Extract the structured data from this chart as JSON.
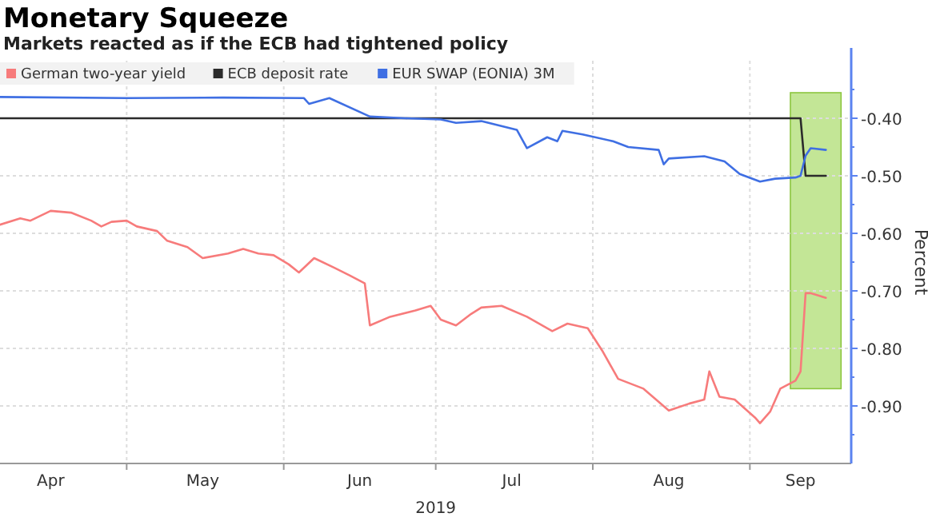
{
  "chart_data": {
    "type": "line",
    "title": "Monetary Squeeze",
    "subtitle": "Markets reacted as if the ECB had tightened policy",
    "xlabel": "2019",
    "ylabel": "Percent",
    "xlim": [
      "2019-04-06",
      "2019-09-21"
    ],
    "xticks": [
      {
        "value": "2019-04-16",
        "label": "Apr"
      },
      {
        "value": "2019-05-01",
        "label": null
      },
      {
        "value": "2019-05-16",
        "label": "May"
      },
      {
        "value": "2019-06-01",
        "label": null
      },
      {
        "value": "2019-06-16",
        "label": "Jun"
      },
      {
        "value": "2019-07-01",
        "label": null
      },
      {
        "value": "2019-07-16",
        "label": "Jul"
      },
      {
        "value": "2019-08-01",
        "label": null
      },
      {
        "value": "2019-08-16",
        "label": "Aug"
      },
      {
        "value": "2019-09-01",
        "label": null
      },
      {
        "value": "2019-09-11",
        "label": "Sep"
      }
    ],
    "ylim": [
      -1.0,
      -0.3
    ],
    "yticks": [
      {
        "value": -0.35,
        "label": null
      },
      {
        "value": -0.4,
        "label": "-0.40"
      },
      {
        "value": -0.45,
        "label": null
      },
      {
        "value": -0.5,
        "label": "-0.50"
      },
      {
        "value": -0.55,
        "label": null
      },
      {
        "value": -0.6,
        "label": "-0.60"
      },
      {
        "value": -0.65,
        "label": null
      },
      {
        "value": -0.7,
        "label": "-0.70"
      },
      {
        "value": -0.75,
        "label": null
      },
      {
        "value": -0.8,
        "label": "-0.80"
      },
      {
        "value": -0.85,
        "label": null
      },
      {
        "value": -0.9,
        "label": "-0.90"
      },
      {
        "value": -0.95,
        "label": null
      }
    ],
    "grid": true,
    "legend": "top left",
    "bands": [
      {
        "axis": "x",
        "from": "2019-09-09",
        "to": "2019-09-19",
        "color": "#a9dc6a"
      }
    ],
    "series": [
      {
        "name": "German two-year yield",
        "color": "#f77b7b",
        "x": [
          "2019-04-06",
          "2019-04-10",
          "2019-04-12",
          "2019-04-16",
          "2019-04-20",
          "2019-04-24",
          "2019-04-26",
          "2019-04-28",
          "2019-05-01",
          "2019-05-03",
          "2019-05-07",
          "2019-05-09",
          "2019-05-13",
          "2019-05-16",
          "2019-05-21",
          "2019-05-24",
          "2019-05-27",
          "2019-05-30",
          "2019-06-02",
          "2019-06-04",
          "2019-06-07",
          "2019-06-11",
          "2019-06-14",
          "2019-06-17",
          "2019-06-18",
          "2019-06-22",
          "2019-06-27",
          "2019-06-30",
          "2019-07-02",
          "2019-07-05",
          "2019-07-08",
          "2019-07-10",
          "2019-07-14",
          "2019-07-19",
          "2019-07-24",
          "2019-07-27",
          "2019-07-31",
          "2019-08-03",
          "2019-08-06",
          "2019-08-11",
          "2019-08-16",
          "2019-08-20",
          "2019-08-23",
          "2019-08-24",
          "2019-08-26",
          "2019-08-29",
          "2019-09-02",
          "2019-09-03",
          "2019-09-05",
          "2019-09-07",
          "2019-09-10",
          "2019-09-11",
          "2019-09-12",
          "2019-09-13",
          "2019-09-16"
        ],
        "values": [
          -0.585,
          -0.574,
          -0.578,
          -0.561,
          -0.564,
          -0.578,
          -0.588,
          -0.58,
          -0.578,
          -0.588,
          -0.596,
          -0.613,
          -0.624,
          -0.643,
          -0.635,
          -0.627,
          -0.635,
          -0.638,
          -0.654,
          -0.668,
          -0.643,
          -0.66,
          -0.673,
          -0.687,
          -0.76,
          -0.745,
          -0.734,
          -0.726,
          -0.75,
          -0.76,
          -0.74,
          -0.729,
          -0.726,
          -0.745,
          -0.77,
          -0.757,
          -0.765,
          -0.806,
          -0.853,
          -0.87,
          -0.908,
          -0.896,
          -0.889,
          -0.84,
          -0.884,
          -0.889,
          -0.92,
          -0.93,
          -0.91,
          -0.87,
          -0.856,
          -0.84,
          -0.704,
          -0.704,
          -0.712
        ]
      },
      {
        "name": "ECB deposit rate",
        "color": "#2b2b2b",
        "x": [
          "2019-04-06",
          "2019-09-11",
          "2019-09-12",
          "2019-09-16"
        ],
        "values": [
          -0.4,
          -0.4,
          -0.5,
          -0.5
        ]
      },
      {
        "name": "EUR SWAP (EONIA) 3M",
        "color": "#3f6fe3",
        "x": [
          "2019-04-06",
          "2019-05-01",
          "2019-05-20",
          "2019-06-05",
          "2019-06-06",
          "2019-06-10",
          "2019-06-18",
          "2019-06-25",
          "2019-07-02",
          "2019-07-05",
          "2019-07-10",
          "2019-07-17",
          "2019-07-19",
          "2019-07-23",
          "2019-07-25",
          "2019-07-26",
          "2019-07-30",
          "2019-08-05",
          "2019-08-08",
          "2019-08-14",
          "2019-08-15",
          "2019-08-16",
          "2019-08-23",
          "2019-08-27",
          "2019-08-30",
          "2019-09-03",
          "2019-09-06",
          "2019-09-10",
          "2019-09-11",
          "2019-09-12",
          "2019-09-13",
          "2019-09-16"
        ],
        "values": [
          -0.363,
          -0.365,
          -0.364,
          -0.365,
          -0.375,
          -0.365,
          -0.397,
          -0.4,
          -0.402,
          -0.408,
          -0.405,
          -0.42,
          -0.452,
          -0.433,
          -0.44,
          -0.422,
          -0.428,
          -0.44,
          -0.45,
          -0.455,
          -0.48,
          -0.47,
          -0.466,
          -0.475,
          -0.497,
          -0.51,
          -0.505,
          -0.503,
          -0.5,
          -0.465,
          -0.452,
          -0.455
        ]
      }
    ]
  }
}
